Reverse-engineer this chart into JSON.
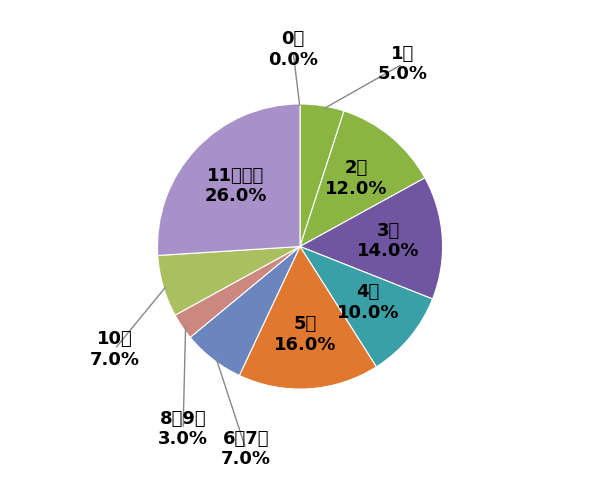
{
  "values": [
    0.0,
    5.0,
    12.0,
    14.0,
    10.0,
    16.0,
    7.0,
    3.0,
    7.0,
    26.0
  ],
  "colors": [
    "#b33a3a",
    "#8ab542",
    "#8ab542",
    "#7055a0",
    "#3aa0a8",
    "#e07830",
    "#6b85bf",
    "#cc8880",
    "#aac060",
    "#a890c8"
  ],
  "background_color": "#ffffff",
  "font_size": 12,
  "label_font_size": 13
}
